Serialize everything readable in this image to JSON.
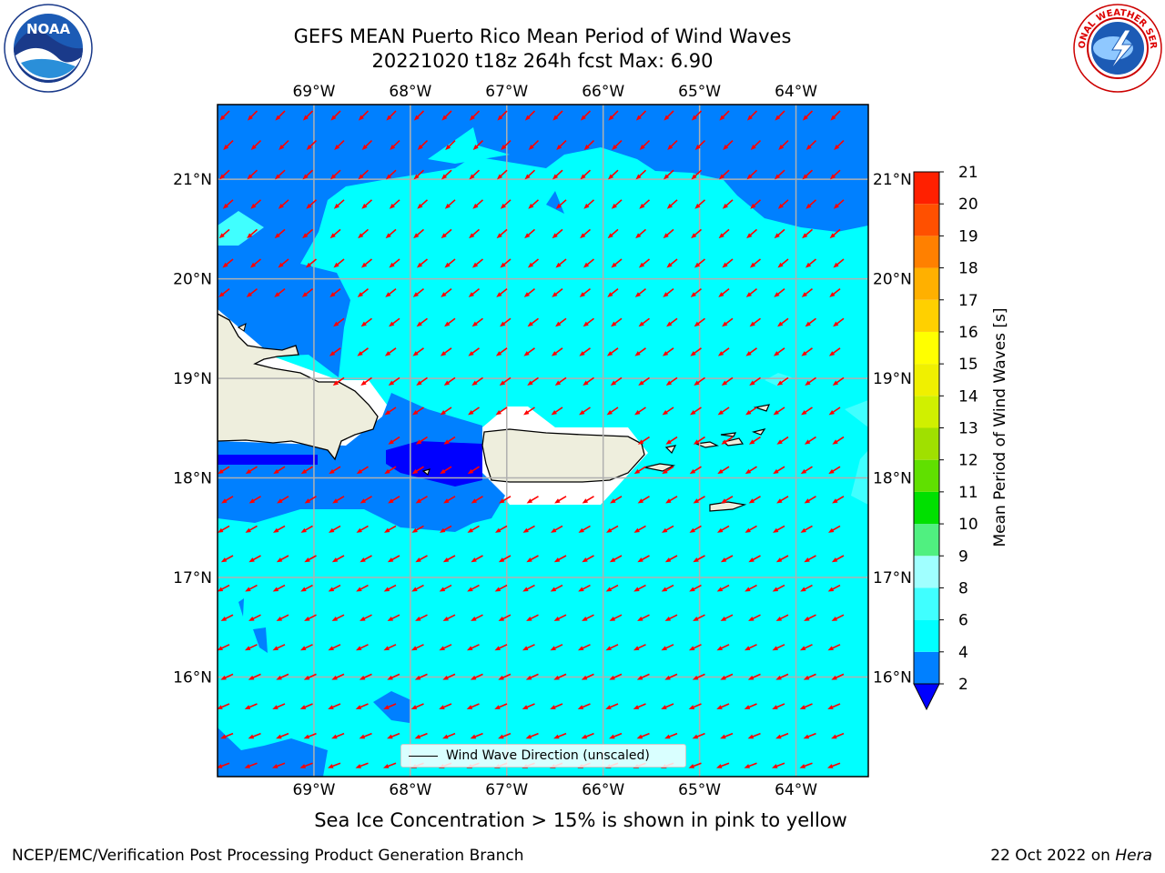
{
  "header": {
    "title_line1": "GEFS MEAN Puerto Rico Mean Period of Wind Waves",
    "title_line2": "20221020 t18z 264h fcst   Max: 6.90"
  },
  "logos": {
    "left": "NOAA",
    "left_ring_text": "NATIONAL OCEANIC AND ATMOSPHERIC ADMINISTRATION · U.S. DEPARTMENT OF COMMERCE",
    "right_ring_text": "NATIONAL WEATHER SERVICE"
  },
  "map": {
    "lon_ticks": [
      "69°W",
      "68°W",
      "67°W",
      "66°W",
      "65°W",
      "64°W"
    ],
    "lat_ticks": [
      "21°N",
      "20°N",
      "19°N",
      "18°N",
      "17°N",
      "16°N"
    ],
    "lon_range": [
      -70.0,
      -63.25
    ],
    "lat_range": [
      15.0,
      21.75
    ],
    "legend_label": "Wind Wave Direction (unscaled)",
    "arrow_color": "#ff0000",
    "land_color": "#eeeedd"
  },
  "colorbar": {
    "label": "Mean Period of Wind Waves [s]",
    "ticks": [
      "2",
      "4",
      "6",
      "8",
      "9",
      "10",
      "11",
      "12",
      "13",
      "14",
      "15",
      "16",
      "17",
      "18",
      "19",
      "20",
      "21"
    ],
    "colors": [
      "#0080ff",
      "#00ffff",
      "#40ffff",
      "#a0ffff",
      "#50f080",
      "#00e000",
      "#60e000",
      "#a0e000",
      "#d0f000",
      "#f0f000",
      "#ffff00",
      "#ffd000",
      "#ffb000",
      "#ff8000",
      "#ff5000",
      "#ff2000"
    ],
    "under_color": "#0000ff"
  },
  "note": "Sea Ice Concentration > 15% is shown in pink to yellow",
  "footer": {
    "left": "NCEP/EMC/Verification Post Processing Product Generation Branch",
    "right_prefix": "22 Oct 2022 on ",
    "right_host": "Hera"
  }
}
